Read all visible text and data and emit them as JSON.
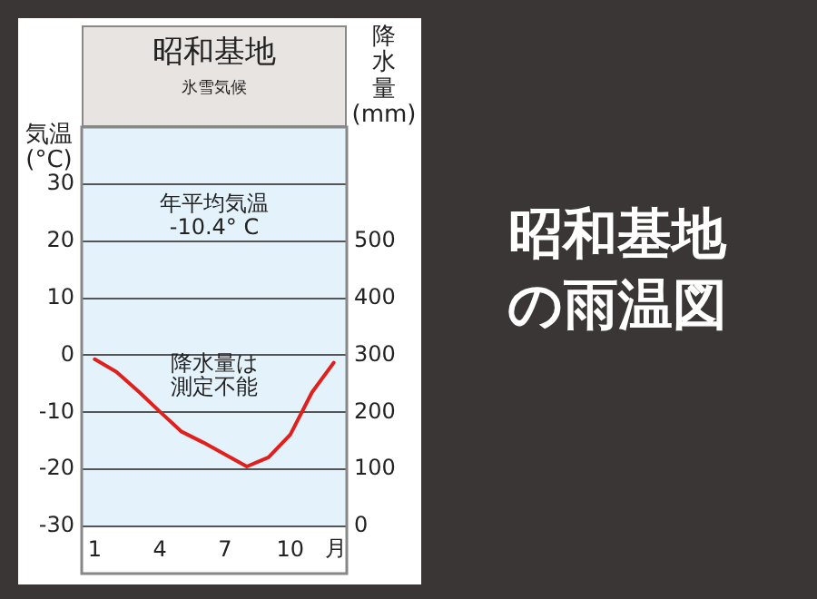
{
  "chart_data": {
    "type": "line",
    "title": "昭和基地",
    "subtitle": "氷雪気候",
    "xlabel": "月",
    "ylabel": "気温(°C)",
    "y2label": "降水量(mm)",
    "x": [
      1,
      2,
      3,
      4,
      5,
      6,
      7,
      8,
      9,
      10,
      11,
      12
    ],
    "series": [
      {
        "color": "#e0201c",
        "values": [
          -0.7,
          -2.9,
          -6.3,
          -9.9,
          -13.4,
          -15.3,
          -17.4,
          -19.5,
          -17.9,
          -13.9,
          -6.5,
          -1.3
        ]
      }
    ],
    "xlim": [
      0.4,
      12.6
    ],
    "xticks": [
      1,
      4,
      7,
      10
    ],
    "ylim": [
      -30,
      40
    ],
    "yticks": [
      -30,
      -20,
      -10,
      0,
      10,
      20,
      30
    ],
    "y2lim": [
      0,
      700
    ],
    "y2ticks": [
      0,
      100,
      200,
      300,
      400,
      500
    ],
    "grid": "y",
    "legend": false,
    "marker": "none",
    "line_style": "solid",
    "annotations": [
      "年平均気温\n-10.4° C",
      "降水量は測定不能",
      "昭和基地の雨温図"
    ]
  }
}
